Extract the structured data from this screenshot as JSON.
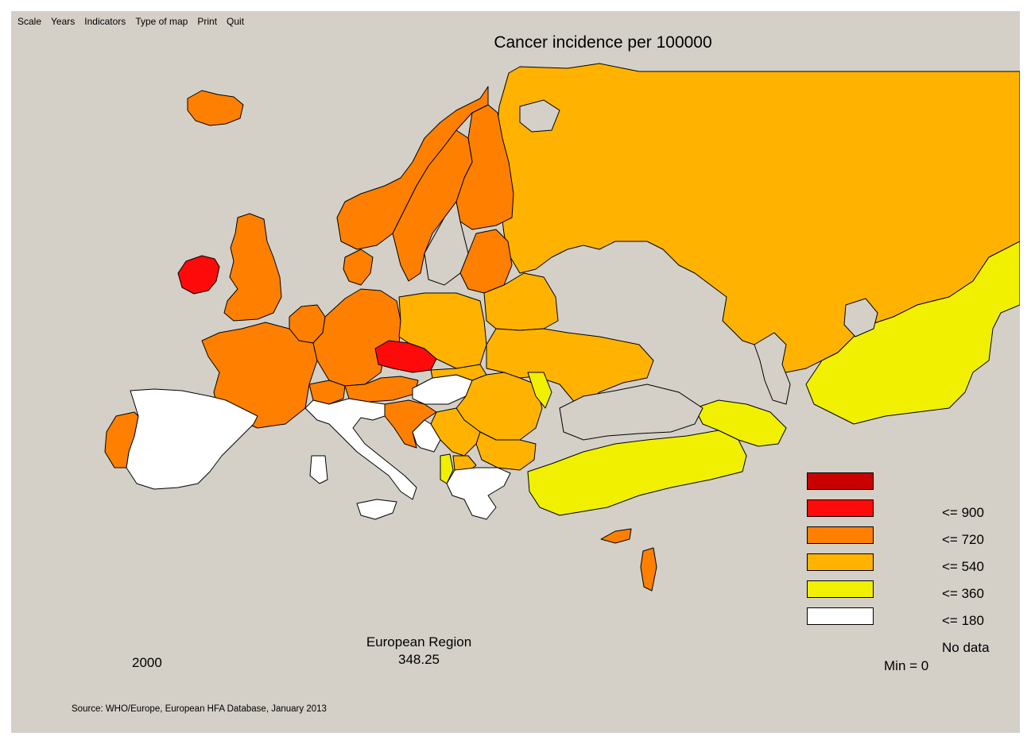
{
  "menu": [
    "Scale",
    "Years",
    "Indicators",
    "Type of map",
    "Print",
    "Quit"
  ],
  "title": "Cancer incidence per 100000",
  "region": {
    "name": "European Region",
    "value": "348.25"
  },
  "year": "2000",
  "min_label": "Min = 0",
  "source": "Source: WHO/Europe, European HFA Database, January 2013",
  "colors": {
    "background": "#d4d0c8",
    "class_900_plus": "#c80000",
    "class_720_900": "#ff0a0a",
    "class_540_720": "#ff8000",
    "class_360_540": "#ffb300",
    "class_180_360": "#f0f000",
    "class_0_180": "#ffffff"
  },
  "legend": {
    "labels": [
      "<= 900",
      "<= 720",
      "<= 540",
      "<= 360",
      "<= 180",
      "No data"
    ]
  },
  "map_classes": {
    "Ireland": "class_720_900",
    "Czech Republic": "class_720_900",
    "United Kingdom": "class_540_720",
    "France": "class_540_720",
    "Germany": "class_540_720",
    "Norway": "class_540_720",
    "Sweden": "class_540_720",
    "Finland": "class_540_720",
    "Denmark": "class_540_720",
    "Netherlands": "class_540_720",
    "Belgium": "class_540_720",
    "Switzerland": "class_540_720",
    "Austria": "class_540_720",
    "Portugal": "class_540_720",
    "Iceland": "class_540_720",
    "Estonia": "class_540_720",
    "Latvia": "class_540_720",
    "Lithuania": "class_540_720",
    "Slovenia": "class_540_720",
    "Croatia": "class_540_720",
    "Israel": "class_540_720",
    "Cyprus": "class_540_720",
    "Russian Federation": "class_360_540",
    "Poland": "class_360_540",
    "Belarus": "class_360_540",
    "Ukraine": "class_360_540",
    "Romania": "class_360_540",
    "Bulgaria": "class_360_540",
    "Serbia": "class_360_540",
    "Slovakia": "class_360_540",
    "Macedonia": "class_360_540",
    "Kazakhstan": "class_180_360",
    "Turkey": "class_180_360",
    "Georgia": "class_180_360",
    "Armenia": "class_180_360",
    "Azerbaijan": "class_180_360",
    "Republic of Moldova": "class_180_360",
    "Albania": "class_180_360",
    "Spain": "class_0_180",
    "Italy": "class_0_180",
    "Hungary": "class_0_180",
    "Greece": "class_0_180",
    "Bosnia and Herzegovina": "class_0_180",
    "Montenegro": "class_0_180"
  }
}
